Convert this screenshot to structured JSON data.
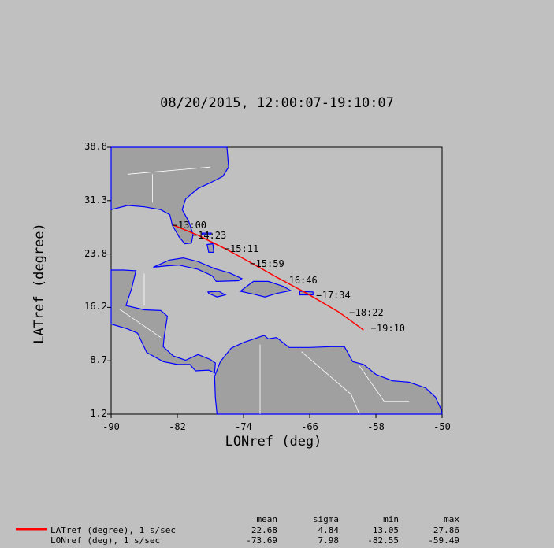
{
  "title": "08/20/2015, 12:00:07-19:10:07",
  "chart_data": {
    "type": "map-track",
    "xlabel": "LONref (deg)",
    "ylabel": "LATref (degree)",
    "xlim": [
      -90,
      -50
    ],
    "ylim": [
      1.2,
      38.8
    ],
    "x_ticks": [
      "-90",
      "-82",
      "-74",
      "-66",
      "-58",
      "-50"
    ],
    "y_ticks": [
      "38.8",
      "31.3",
      "23.8",
      "16.2",
      "8.7",
      "1.2"
    ],
    "track_color": "#ff0000",
    "coast_color": "#0000ff",
    "border_color": "#ffffff",
    "land_color": "#a0a0a0",
    "track": [
      {
        "lon": -82.55,
        "lat": 27.86
      },
      {
        "lon": -79.5,
        "lat": 26.4
      },
      {
        "lon": -76.2,
        "lat": 24.5
      },
      {
        "lon": -73.2,
        "lat": 22.6
      },
      {
        "lon": -70.0,
        "lat": 20.5
      },
      {
        "lon": -66.5,
        "lat": 18.3
      },
      {
        "lon": -62.5,
        "lat": 15.6
      },
      {
        "lon": -59.49,
        "lat": 13.05
      }
    ],
    "labels": [
      {
        "text": "13:00",
        "lon": -82.2,
        "lat": 27.8
      },
      {
        "text": "14:23",
        "lon": -79.8,
        "lat": 26.4
      },
      {
        "text": "15:11",
        "lon": -75.9,
        "lat": 24.5
      },
      {
        "text": "15:59",
        "lon": -72.8,
        "lat": 22.4
      },
      {
        "text": "16:46",
        "lon": -68.8,
        "lat": 20.1
      },
      {
        "text": "17:34",
        "lon": -64.8,
        "lat": 17.9
      },
      {
        "text": "18:22",
        "lon": -60.8,
        "lat": 15.5
      },
      {
        "text": "19:10",
        "lon": -58.2,
        "lat": 13.3
      }
    ]
  },
  "legend": {
    "headers": [
      "mean",
      "sigma",
      "min",
      "max"
    ],
    "rows": [
      {
        "label": "LATref (degree), 1 s/sec",
        "color": "#ff0000",
        "values": [
          "22.68",
          "4.84",
          "13.05",
          "27.86"
        ]
      },
      {
        "label": "LONref (deg), 1 s/sec",
        "color": "",
        "values": [
          "-73.69",
          "7.98",
          "-82.55",
          "-59.49"
        ]
      }
    ]
  }
}
